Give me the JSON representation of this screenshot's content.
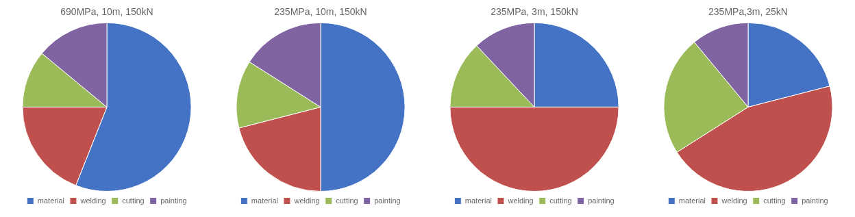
{
  "chart_data": [
    {
      "type": "pie",
      "title": "690MPa, 10m, 150kN",
      "categories": [
        "material",
        "welding",
        "cutting",
        "painting"
      ],
      "values": [
        56,
        19,
        11,
        14
      ],
      "colors": [
        "#4472C4",
        "#C0504D",
        "#9BBB59",
        "#8064A2"
      ],
      "legend": "bottom"
    },
    {
      "type": "pie",
      "title": "235MPa, 10m, 150kN",
      "categories": [
        "material",
        "welding",
        "cutting",
        "painting"
      ],
      "values": [
        50,
        21,
        13,
        16
      ],
      "colors": [
        "#4472C4",
        "#C0504D",
        "#9BBB59",
        "#8064A2"
      ],
      "legend": "bottom"
    },
    {
      "type": "pie",
      "title": "235MPa, 3m, 150kN",
      "categories": [
        "material",
        "welding",
        "cutting",
        "painting"
      ],
      "values": [
        25,
        50,
        13,
        12
      ],
      "colors": [
        "#4472C4",
        "#C0504D",
        "#9BBB59",
        "#8064A2"
      ],
      "legend": "bottom"
    },
    {
      "type": "pie",
      "title": "235MPa,3m, 25kN",
      "categories": [
        "material",
        "welding",
        "cutting",
        "painting"
      ],
      "values": [
        21,
        45,
        23,
        11
      ],
      "colors": [
        "#4472C4",
        "#C0504D",
        "#9BBB59",
        "#8064A2"
      ],
      "legend": "bottom"
    }
  ]
}
